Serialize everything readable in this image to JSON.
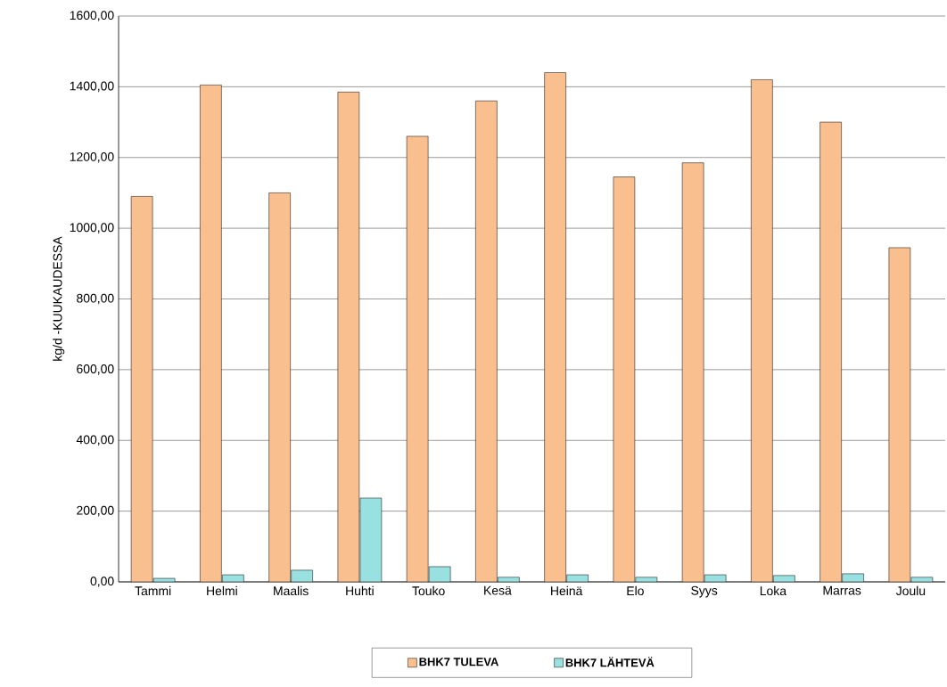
{
  "chart_data": {
    "type": "bar",
    "ylabel": "kg/d -KUUKAUDESSA",
    "categories": [
      "Tammi",
      "Helmi",
      "Maalis",
      "Huhti",
      "Touko",
      "Kesä",
      "Heinä",
      "Elo",
      "Syys",
      "Loka",
      "Marras",
      "Joulu"
    ],
    "series": [
      {
        "name": "BHK7 TULEVA",
        "color": "#f9bf8f",
        "values": [
          1090,
          1405,
          1100,
          1385,
          1260,
          1360,
          1440,
          1145,
          1185,
          1420,
          1300,
          945
        ]
      },
      {
        "name": "BHK7 LÄHTEVÄ",
        "color": "#99e0e0",
        "values": [
          10,
          20,
          33,
          237,
          43,
          13,
          20,
          13,
          20,
          18,
          23,
          13
        ]
      }
    ],
    "ylim": [
      0,
      1600
    ],
    "yticks": [
      {
        "value": 0,
        "label": "0,00"
      },
      {
        "value": 200,
        "label": "200,00"
      },
      {
        "value": 400,
        "label": "400,00"
      },
      {
        "value": 600,
        "label": "600,00"
      },
      {
        "value": 800,
        "label": "800,00"
      },
      {
        "value": 1000,
        "label": "1000,00"
      },
      {
        "value": 1200,
        "label": "1200,00"
      },
      {
        "value": 1400,
        "label": "1400,00"
      },
      {
        "value": 1600,
        "label": "1600,00"
      }
    ],
    "grid": "y",
    "legend": "bottom"
  }
}
